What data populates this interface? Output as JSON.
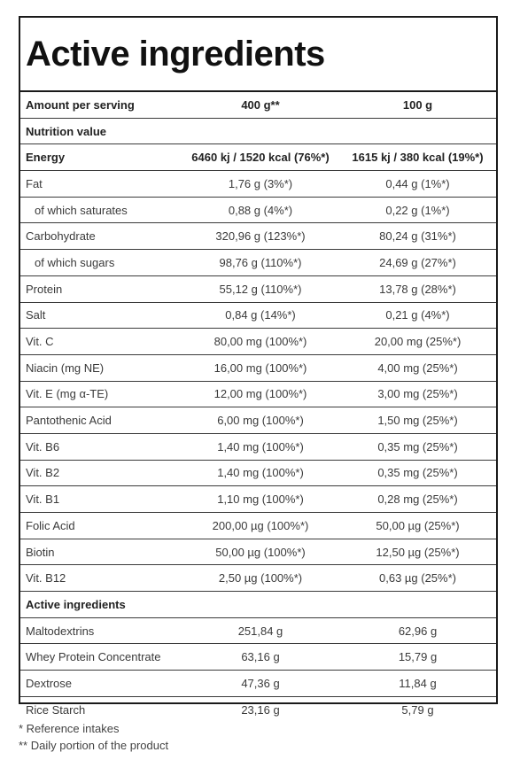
{
  "title": "Active ingredients",
  "rows": [
    {
      "label": "Amount per serving",
      "v1": "400 g**",
      "v2": "100 g",
      "bold": true
    },
    {
      "label": "Nutrition value",
      "v1": "",
      "v2": "",
      "bold": true
    },
    {
      "label": "Energy",
      "v1": "6460 kj / 1520 kcal (76%*)",
      "v2": "1615 kj / 380 kcal (19%*)",
      "bold": true
    },
    {
      "label": "Fat",
      "v1": "1,76 g (3%*)",
      "v2": "0,44 g (1%*)"
    },
    {
      "label": "of which saturates",
      "v1": "0,88 g (4%*)",
      "v2": "0,22 g (1%*)",
      "indent": true
    },
    {
      "label": "Carbohydrate",
      "v1": "320,96 g (123%*)",
      "v2": "80,24 g (31%*)"
    },
    {
      "label": "of which sugars",
      "v1": "98,76 g (110%*)",
      "v2": "24,69 g (27%*)",
      "indent": true
    },
    {
      "label": "Protein",
      "v1": "55,12 g (110%*)",
      "v2": "13,78 g (28%*)"
    },
    {
      "label": "Salt",
      "v1": "0,84 g (14%*)",
      "v2": "0,21 g (4%*)"
    },
    {
      "label": "Vit. C",
      "v1": "80,00 mg (100%*)",
      "v2": "20,00 mg (25%*)"
    },
    {
      "label": "Niacin (mg NE)",
      "v1": "16,00 mg (100%*)",
      "v2": "4,00 mg (25%*)"
    },
    {
      "label": "Vit. E (mg α-TE)",
      "v1": "12,00 mg (100%*)",
      "v2": "3,00 mg (25%*)"
    },
    {
      "label": "Pantothenic Acid",
      "v1": "6,00 mg (100%*)",
      "v2": "1,50 mg (25%*)"
    },
    {
      "label": "Vit. B6",
      "v1": "1,40 mg (100%*)",
      "v2": "0,35 mg (25%*)"
    },
    {
      "label": "Vit. B2",
      "v1": "1,40 mg (100%*)",
      "v2": "0,35 mg (25%*)"
    },
    {
      "label": "Vit. B1",
      "v1": "1,10 mg (100%*)",
      "v2": "0,28 mg (25%*)"
    },
    {
      "label": "Folic Acid",
      "v1": "200,00 µg (100%*)",
      "v2": "50,00 µg (25%*)"
    },
    {
      "label": "Biotin",
      "v1": "50,00 µg (100%*)",
      "v2": "12,50 µg (25%*)"
    },
    {
      "label": "Vit. B12",
      "v1": "2,50 µg (100%*)",
      "v2": "0,63 µg (25%*)"
    },
    {
      "label": "Active ingredients",
      "v1": "",
      "v2": "",
      "bold": true
    },
    {
      "label": "Maltodextrins",
      "v1": "251,84 g",
      "v2": "62,96 g"
    },
    {
      "label": "Whey Protein Concentrate",
      "v1": "63,16 g",
      "v2": "15,79 g"
    },
    {
      "label": "Dextrose",
      "v1": "47,36 g",
      "v2": "11,84 g"
    },
    {
      "label": "Rice Starch",
      "v1": "23,16 g",
      "v2": "5,79 g"
    }
  ],
  "footnotes": [
    "* Reference intakes",
    "** Daily portion of the product"
  ]
}
